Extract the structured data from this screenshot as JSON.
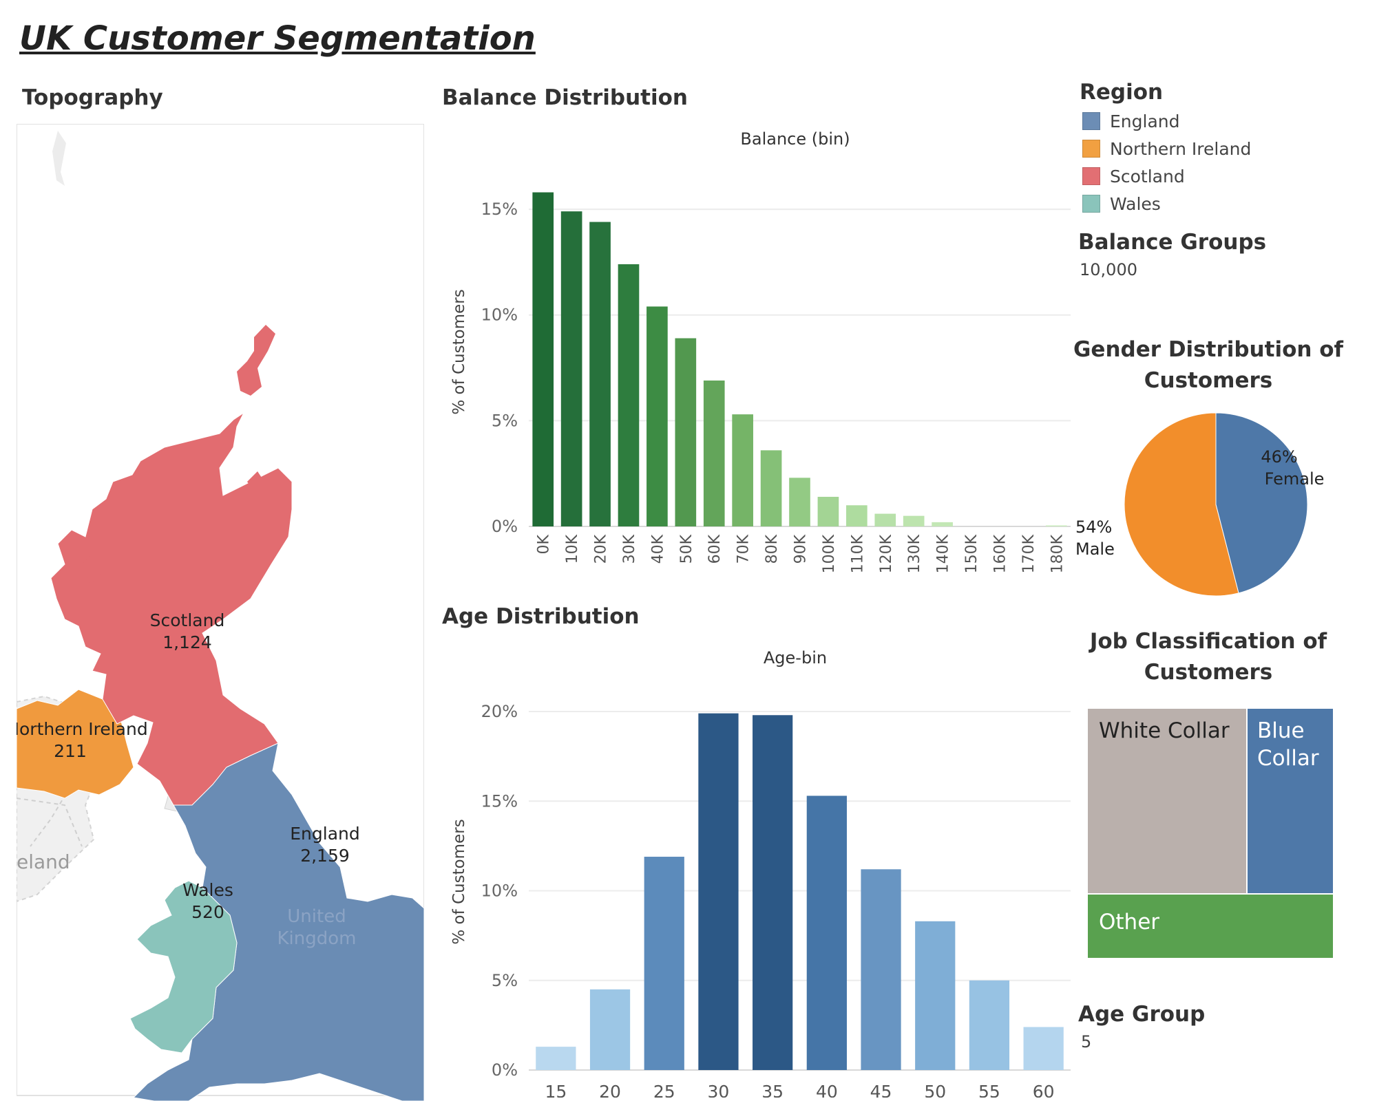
{
  "title": "UK Customer Segmentation",
  "topography": {
    "title": "Topography",
    "regions": [
      {
        "name": "Scotland",
        "value": "1,124"
      },
      {
        "name": "Northern Ireland",
        "value": "211"
      },
      {
        "name": "England",
        "value": "2,159"
      },
      {
        "name": "Wales",
        "value": "520"
      }
    ],
    "country_label": [
      "United",
      "Kingdom"
    ],
    "ireland_label": "eland"
  },
  "balance_chart": {
    "title": "Balance Distribution",
    "subtitle": "Balance (bin)"
  },
  "age_chart": {
    "title": "Age Distribution",
    "subtitle": "Age-bin"
  },
  "region_legend": {
    "title": "Region",
    "items": [
      {
        "label": "England",
        "color": "#6c8db5"
      },
      {
        "label": "Northern Ireland",
        "color": "#f1a041"
      },
      {
        "label": "Scotland",
        "color": "#e26f73"
      },
      {
        "label": "Wales",
        "color": "#8ac4bb"
      }
    ]
  },
  "balance_groups": {
    "title": "Balance Groups",
    "value": "10,000"
  },
  "gender": {
    "title_line1": "Gender Distribution of",
    "title_line2": "Customers",
    "female_pct": "46%",
    "female_label": "Female",
    "male_pct": "54%",
    "male_label": "Male"
  },
  "job": {
    "title_line1": "Job Classification of",
    "title_line2": "Customers",
    "white_collar": "White Collar",
    "blue_collar_line1": "Blue",
    "blue_collar_line2": "Collar",
    "other": "Other"
  },
  "age_group": {
    "title": "Age Group",
    "value": "5"
  },
  "chart_data": [
    {
      "type": "bar",
      "title": "Balance Distribution",
      "xlabel": "Balance (bin)",
      "ylabel": "% of Customers",
      "categories": [
        "0K",
        "10K",
        "20K",
        "30K",
        "40K",
        "50K",
        "60K",
        "70K",
        "80K",
        "90K",
        "100K",
        "110K",
        "120K",
        "130K",
        "140K",
        "150K",
        "160K",
        "170K",
        "180K"
      ],
      "values": [
        15.8,
        14.9,
        14.4,
        12.4,
        10.4,
        8.9,
        6.9,
        5.3,
        3.6,
        2.3,
        1.4,
        1.0,
        0.6,
        0.5,
        0.2,
        0.0,
        0.0,
        0.0,
        0.05
      ],
      "colors": [
        "#1f6b35",
        "#256f3a",
        "#27723c",
        "#2e7d3e",
        "#3d8c44",
        "#52984f",
        "#63a55a",
        "#75b467",
        "#85c077",
        "#93ca84",
        "#a3d494",
        "#aedc9f",
        "#b7e0a9",
        "#bde4ae",
        "#c3e7b5",
        "#c8eaba",
        "#c8eaba",
        "#c8eaba",
        "#cdedc0"
      ],
      "yticks": [
        "0%",
        "5%",
        "10%",
        "15%"
      ],
      "ylim": [
        0,
        16.5
      ],
      "grid": true
    },
    {
      "type": "bar",
      "title": "Age Distribution",
      "xlabel": "Age-bin",
      "ylabel": "% of Customers",
      "categories": [
        "15",
        "20",
        "25",
        "30",
        "35",
        "40",
        "45",
        "50",
        "55",
        "60"
      ],
      "values": [
        1.3,
        4.5,
        11.9,
        19.9,
        19.8,
        15.3,
        11.2,
        8.3,
        5.0,
        2.4
      ],
      "colors": [
        "#b9d8ef",
        "#9cc6e5",
        "#5c8bbb",
        "#2c5886",
        "#2c5886",
        "#4575a7",
        "#6895c2",
        "#7faed6",
        "#97c2e3",
        "#b4d5ee"
      ],
      "yticks": [
        "0%",
        "5%",
        "10%",
        "15%",
        "20%"
      ],
      "ylim": [
        0,
        21
      ],
      "grid": true
    },
    {
      "type": "pie",
      "title": "Gender Distribution of Customers",
      "categories": [
        "Female",
        "Male"
      ],
      "values": [
        46,
        54
      ],
      "colors": [
        "#4e78a8",
        "#f28e2b"
      ]
    },
    {
      "type": "treemap",
      "title": "Job Classification of Customers",
      "categories": [
        "White Collar",
        "Blue Collar",
        "Other"
      ],
      "colors": [
        "#bab0ac",
        "#4e78a8",
        "#59a14f"
      ]
    }
  ]
}
